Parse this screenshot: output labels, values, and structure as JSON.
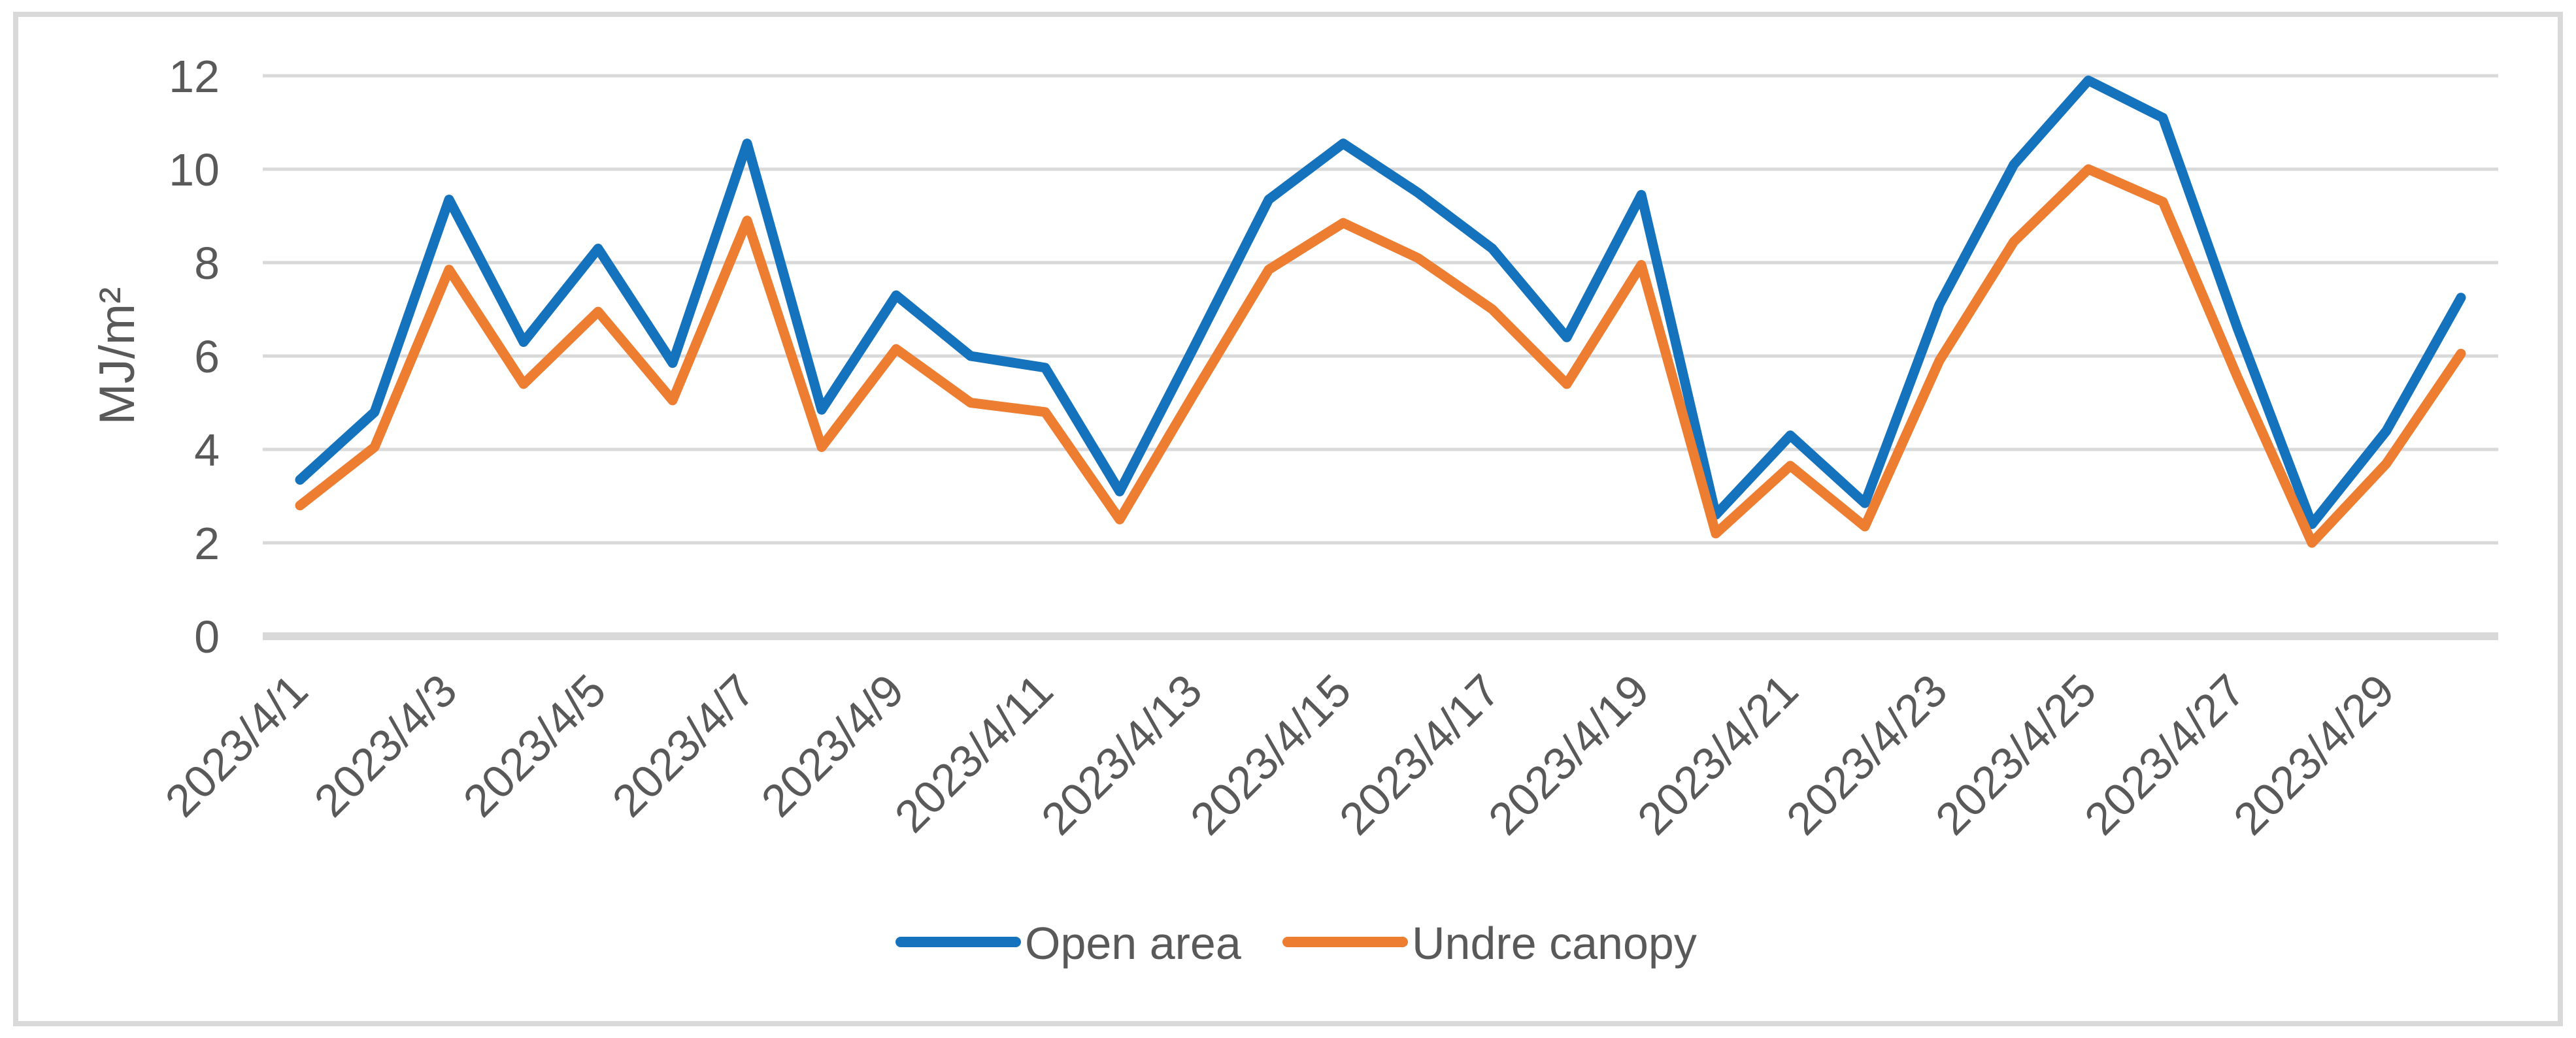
{
  "chart_data": {
    "type": "line",
    "title": "",
    "xlabel": "",
    "ylabel": "MJ/m²",
    "yticks": [
      0,
      2,
      4,
      6,
      8,
      10,
      12
    ],
    "ylim": [
      0,
      12
    ],
    "grid": true,
    "legend_position": "bottom",
    "categories": [
      "2023/4/1",
      "2023/4/2",
      "2023/4/3",
      "2023/4/4",
      "2023/4/5",
      "2023/4/6",
      "2023/4/7",
      "2023/4/8",
      "2023/4/9",
      "2023/4/10",
      "2023/4/11",
      "2023/4/12",
      "2023/4/13",
      "2023/4/14",
      "2023/4/15",
      "2023/4/16",
      "2023/4/17",
      "2023/4/18",
      "2023/4/19",
      "2023/4/20",
      "2023/4/21",
      "2023/4/22",
      "2023/4/23",
      "2023/4/24",
      "2023/4/25",
      "2023/4/26",
      "2023/4/27",
      "2023/4/28",
      "2023/4/29",
      "2023/4/30"
    ],
    "xtick_labels": [
      "2023/4/1",
      "2023/4/3",
      "2023/4/5",
      "2023/4/7",
      "2023/4/9",
      "2023/4/11",
      "2023/4/13",
      "2023/4/15",
      "2023/4/17",
      "2023/4/19",
      "2023/4/21",
      "2023/4/23",
      "2023/4/25",
      "2023/4/27",
      "2023/4/29"
    ],
    "series": [
      {
        "name": "Open area",
        "color": "#1572BC",
        "values": [
          3.35,
          4.8,
          9.35,
          6.3,
          8.3,
          5.85,
          10.55,
          4.85,
          7.3,
          6.0,
          5.75,
          3.1,
          6.2,
          9.35,
          10.55,
          9.5,
          8.3,
          6.4,
          9.45,
          2.6,
          4.3,
          2.85,
          7.1,
          10.1,
          11.9,
          11.1,
          6.6,
          2.4,
          4.4,
          7.25
        ]
      },
      {
        "name": "Undre canopy",
        "color": "#ED7D31",
        "values": [
          2.8,
          4.05,
          7.85,
          5.4,
          6.95,
          5.05,
          8.9,
          4.05,
          6.15,
          5.0,
          4.8,
          2.5,
          5.2,
          7.85,
          8.85,
          8.1,
          7.0,
          5.4,
          7.95,
          2.2,
          3.65,
          2.35,
          5.9,
          8.45,
          10.0,
          9.3,
          5.55,
          2.0,
          3.7,
          6.05
        ]
      }
    ]
  },
  "style": {
    "text_color": "#595959",
    "gridline_color": "#D9D9D9",
    "axis_line_color": "#D9D9D9",
    "border_color": "#D9D9D9",
    "background": "#FFFFFF"
  }
}
